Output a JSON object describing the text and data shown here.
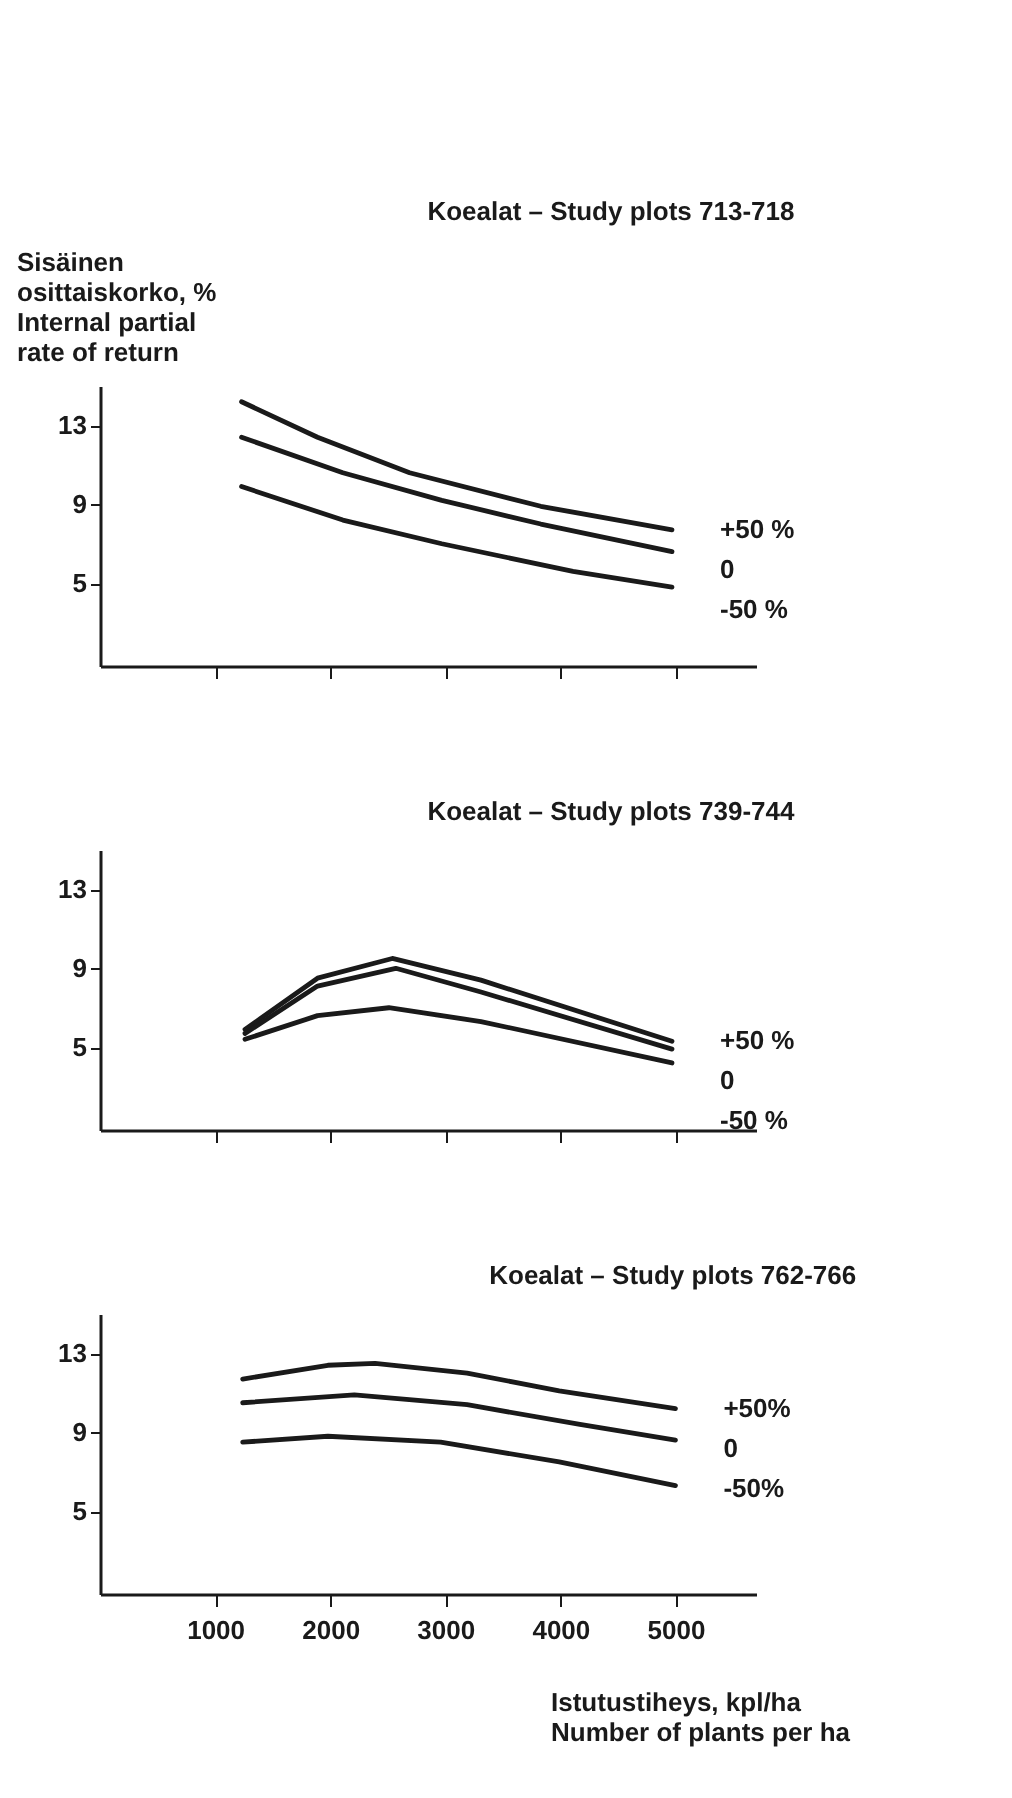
{
  "chart_data": [
    {
      "type": "line",
      "title": "Koealat – Study plots 713-718",
      "ylabel": "Sisäinen\nosittaiskorko, %\nInternal partial\nrate of return",
      "xlim": [
        0,
        5700
      ],
      "ylim": [
        0.8,
        15
      ],
      "yticks": [
        5,
        9,
        13
      ],
      "xticks": [
        {
          "value": 1000,
          "label": null
        },
        {
          "value": 2000,
          "label": null
        },
        {
          "value": 3000,
          "label": null
        },
        {
          "value": 4000,
          "label": null
        },
        {
          "value": 5000,
          "label": null
        }
      ],
      "tick_labels": "y",
      "grid": false,
      "marker": "none",
      "line_style": "solid",
      "series": [
        {
          "name": "+50 %",
          "color": "#1a1a1a",
          "x": [
            1230,
            1890,
            2690,
            3830,
            4970
          ],
          "values": [
            14.2,
            12.4,
            10.6,
            8.9,
            7.7
          ]
        },
        {
          "name": "0",
          "color": "#1a1a1a",
          "x": [
            1230,
            2110,
            2970,
            3830,
            4970
          ],
          "values": [
            12.4,
            10.6,
            9.2,
            8.0,
            6.6
          ]
        },
        {
          "name": "-50 %",
          "color": "#1a1a1a",
          "x": [
            1230,
            2110,
            2970,
            4110,
            4970
          ],
          "values": [
            9.9,
            8.2,
            7.0,
            5.6,
            4.8
          ]
        }
      ]
    },
    {
      "type": "line",
      "title": "Koealat – Study plots 739-744",
      "xlim": [
        0,
        5700
      ],
      "ylim": [
        0.8,
        15
      ],
      "yticks": [
        5,
        9,
        13
      ],
      "xticks": [
        {
          "value": 1000,
          "label": null
        },
        {
          "value": 2000,
          "label": null
        },
        {
          "value": 3000,
          "label": null
        },
        {
          "value": 4000,
          "label": null
        },
        {
          "value": 5000,
          "label": null
        }
      ],
      "tick_labels": "y",
      "grid": false,
      "marker": "none",
      "line_style": "solid",
      "series": [
        {
          "name": "+50 %",
          "color": "#1a1a1a",
          "x": [
            1260,
            1890,
            2540,
            3310,
            4970
          ],
          "values": [
            5.9,
            8.5,
            9.5,
            8.4,
            5.3
          ]
        },
        {
          "name": "0",
          "color": "#1a1a1a",
          "x": [
            1260,
            1890,
            2570,
            3310,
            4970
          ],
          "values": [
            5.7,
            8.1,
            9.0,
            7.8,
            4.9
          ]
        },
        {
          "name": "-50 %",
          "color": "#1a1a1a",
          "x": [
            1260,
            1890,
            2510,
            3310,
            4970
          ],
          "values": [
            5.4,
            6.6,
            7.0,
            6.3,
            4.2
          ]
        }
      ]
    },
    {
      "type": "line",
      "title": "Koealat – Study plots 762-766",
      "xlabel": "Istutustiheys, kpl/ha\nNumber  of plants per ha",
      "xlim": [
        0,
        5700
      ],
      "ylim": [
        0.8,
        15
      ],
      "yticks": [
        5,
        9,
        13
      ],
      "xticks": [
        1000,
        2000,
        3000,
        4000,
        5000
      ],
      "grid": false,
      "marker": "none",
      "line_style": "solid",
      "series": [
        {
          "name": "+50%",
          "color": "#1a1a1a",
          "x": [
            1240,
            1980,
            2390,
            3190,
            3990,
            5000
          ],
          "values": [
            11.7,
            12.4,
            12.5,
            12.0,
            11.1,
            10.2
          ]
        },
        {
          "name": "0",
          "color": "#1a1a1a",
          "x": [
            1240,
            2210,
            3190,
            4170,
            5000
          ],
          "values": [
            10.5,
            10.9,
            10.4,
            9.4,
            8.6
          ]
        },
        {
          "name": "-50%",
          "color": "#1a1a1a",
          "x": [
            1240,
            1980,
            2960,
            3990,
            5000
          ],
          "values": [
            8.5,
            8.8,
            8.5,
            7.5,
            6.3
          ]
        }
      ]
    }
  ]
}
